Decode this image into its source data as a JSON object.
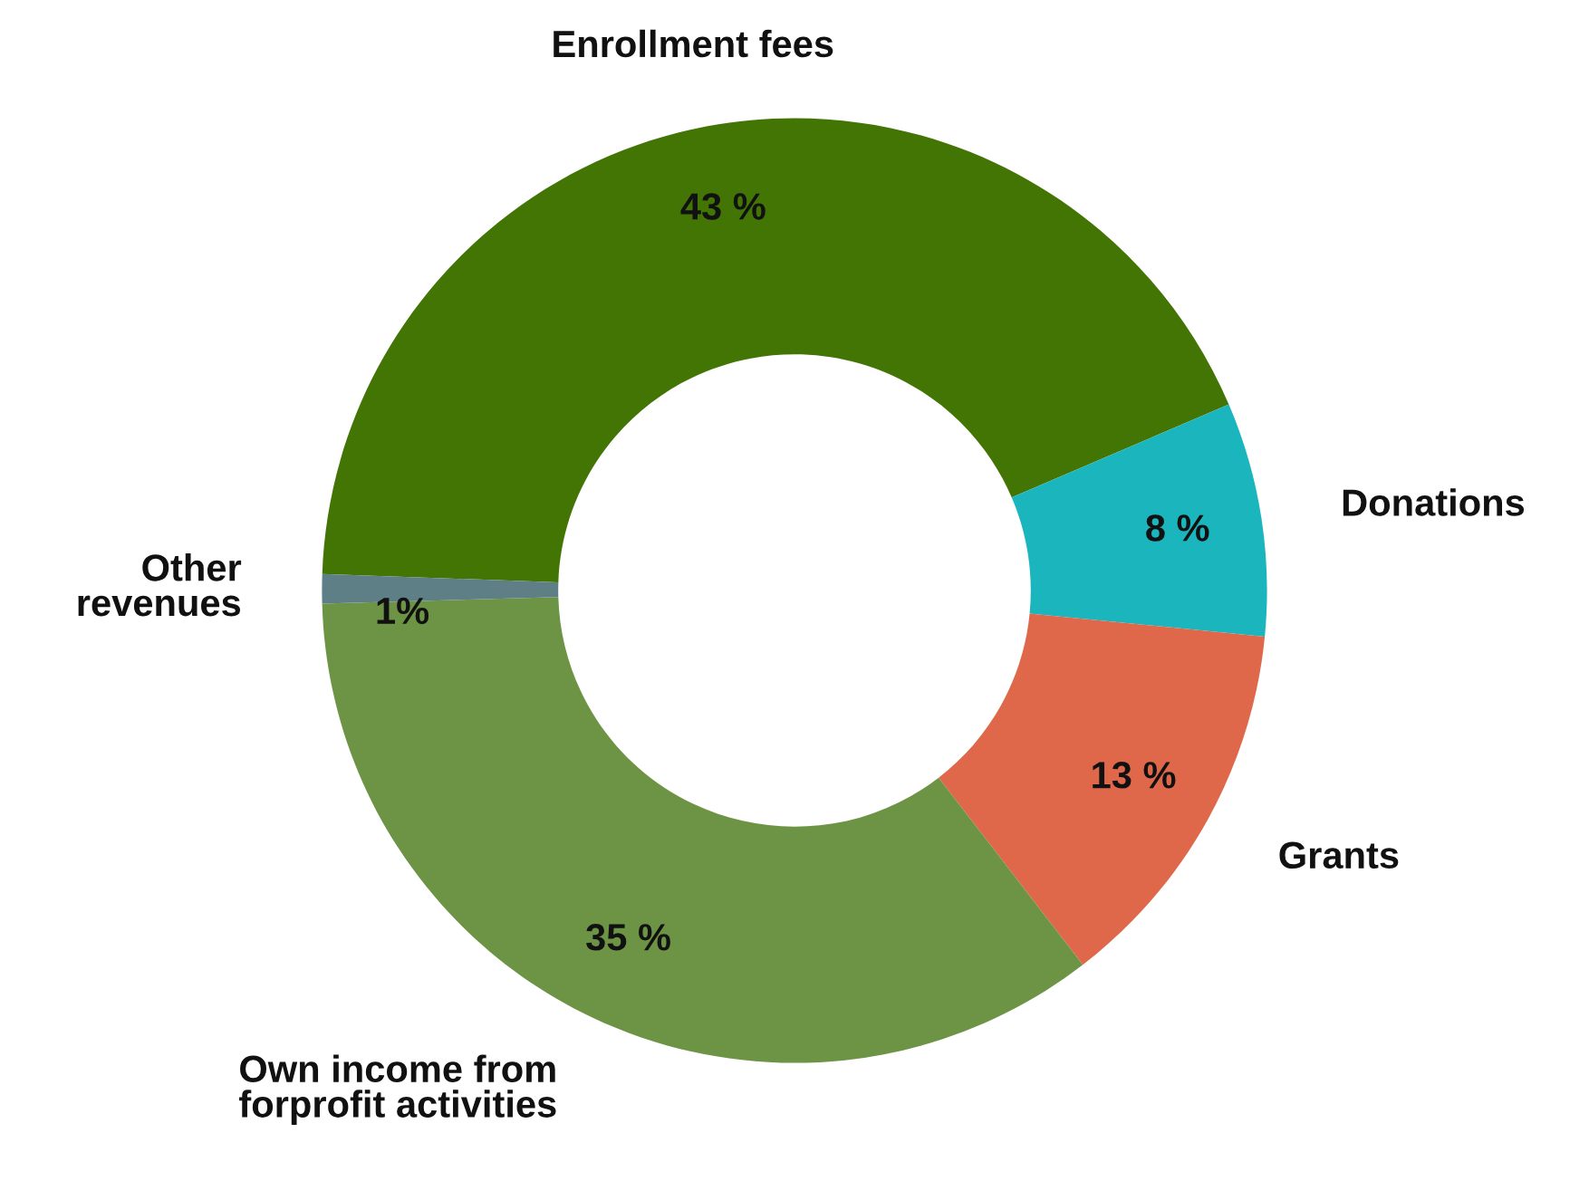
{
  "chart_data": {
    "type": "donut",
    "categories": [
      "Enrollment fees",
      "Donations",
      "Grants",
      "Own income from\nforprofit activities",
      "Other\nrevenues"
    ],
    "values": [
      43,
      8,
      13,
      35,
      1
    ],
    "value_labels": [
      "43 %",
      "8 %",
      "13 %",
      "35 %",
      "1%"
    ],
    "colors": [
      "#437505",
      "#1bb5bd",
      "#e0684a",
      "#6d9445",
      "#5f7f86"
    ]
  }
}
